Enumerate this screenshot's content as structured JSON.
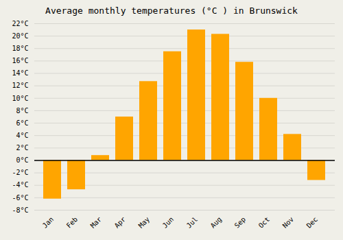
{
  "chart_data": {
    "type": "bar",
    "title": "Average monthly temperatures (°C ) in Brunswick",
    "categories": [
      "Jan",
      "Feb",
      "Mar",
      "Apr",
      "May",
      "Jun",
      "Jul",
      "Aug",
      "Sep",
      "Oct",
      "Nov",
      "Dec"
    ],
    "values": [
      -6.2,
      -4.7,
      0.8,
      7.0,
      12.7,
      17.5,
      21.0,
      20.3,
      15.8,
      10.0,
      4.2,
      -3.2
    ],
    "color": "#FFA500",
    "ylim": [
      -8,
      22
    ],
    "yticks": [
      {
        "value": -8,
        "label": "-8°C"
      },
      {
        "value": -6,
        "label": "-6°C"
      },
      {
        "value": -4,
        "label": "-4°C"
      },
      {
        "value": -2,
        "label": "-2°C"
      },
      {
        "value": 0,
        "label": "0°C"
      },
      {
        "value": 2,
        "label": "2°C"
      },
      {
        "value": 4,
        "label": "4°C"
      },
      {
        "value": 6,
        "label": "6°C"
      },
      {
        "value": 8,
        "label": "8°C"
      },
      {
        "value": 10,
        "label": "10°C"
      },
      {
        "value": 12,
        "label": "12°C"
      },
      {
        "value": 14,
        "label": "14°C"
      },
      {
        "value": 16,
        "label": "16°C"
      },
      {
        "value": 18,
        "label": "18°C"
      },
      {
        "value": 20,
        "label": "20°C"
      },
      {
        "value": 22,
        "label": "22°C"
      }
    ],
    "grid": true
  }
}
